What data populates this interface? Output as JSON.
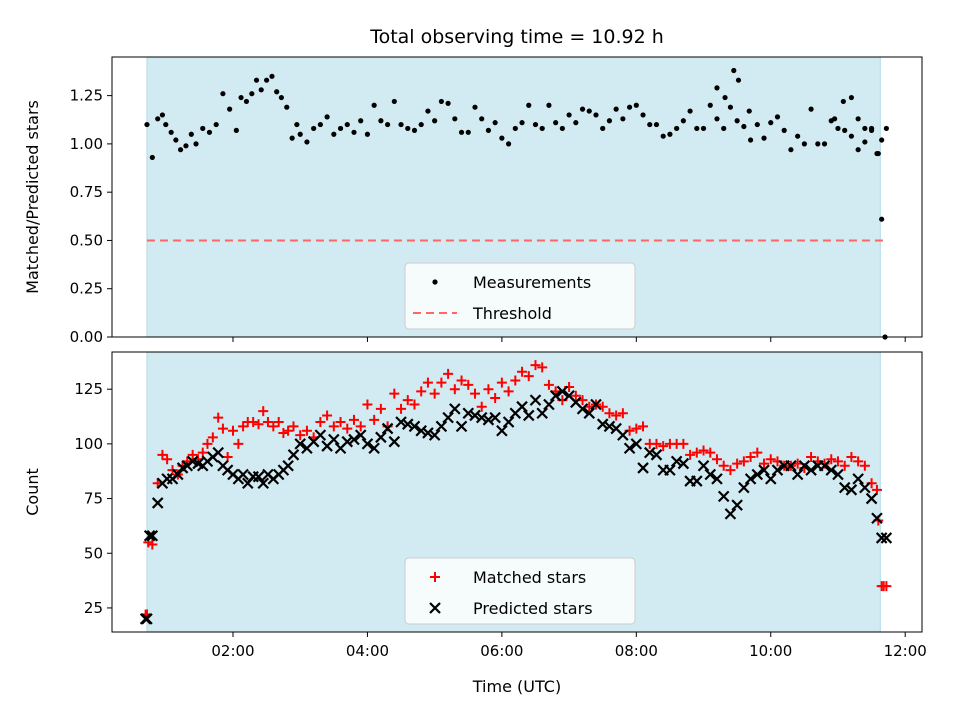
{
  "chart_data": {
    "title": "Total observing time = 10.92 h",
    "xlabel": "Time (UTC)",
    "x_unit": "hours UTC",
    "xlim": [
      0.2,
      12.25
    ],
    "x_ticks": [
      {
        "value": 2,
        "label": "02:00"
      },
      {
        "value": 4,
        "label": "04:00"
      },
      {
        "value": 6,
        "label": "06:00"
      },
      {
        "value": 8,
        "label": "08:00"
      },
      {
        "value": 10,
        "label": "10:00"
      },
      {
        "value": 12,
        "label": "12:00"
      }
    ],
    "observing_window": {
      "start": 0.72,
      "end": 11.63,
      "color": "#add8e6"
    },
    "panels": [
      {
        "id": "ratio",
        "type": "scatter",
        "ylabel": "Matched/Predicted stars",
        "ylim": [
          0,
          1.45
        ],
        "y_ticks": [
          "0.00",
          "0.25",
          "0.50",
          "0.75",
          "1.00",
          "1.25"
        ],
        "legend": {
          "position": "lower center"
        },
        "series": [
          {
            "name": "Measurements",
            "marker": "dot",
            "color": "#000000",
            "x": [
              0.72,
              0.8,
              0.88,
              0.95,
              1.0,
              1.08,
              1.15,
              1.22,
              1.3,
              1.38,
              1.45,
              1.55,
              1.65,
              1.75,
              1.85,
              1.95,
              2.05,
              2.12,
              2.2,
              2.28,
              2.35,
              2.42,
              2.5,
              2.58,
              2.65,
              2.72,
              2.8,
              2.88,
              2.95,
              3.0,
              3.1,
              3.2,
              3.3,
              3.4,
              3.5,
              3.6,
              3.7,
              3.8,
              3.9,
              4.0,
              4.1,
              4.2,
              4.3,
              4.4,
              4.5,
              4.6,
              4.7,
              4.8,
              4.9,
              5.0,
              5.1,
              5.2,
              5.3,
              5.4,
              5.5,
              5.6,
              5.7,
              5.8,
              5.9,
              6.0,
              6.1,
              6.2,
              6.3,
              6.4,
              6.5,
              6.6,
              6.7,
              6.8,
              6.9,
              7.0,
              7.1,
              7.2,
              7.3,
              7.4,
              7.5,
              7.6,
              7.7,
              7.8,
              7.9,
              8.0,
              8.1,
              8.2,
              8.3,
              8.4,
              8.5,
              8.6,
              8.7,
              8.8,
              8.9,
              9.0,
              9.1,
              9.2,
              9.3,
              9.4,
              9.5,
              9.6,
              9.7,
              9.8,
              9.9,
              10.0,
              10.1,
              10.2,
              10.3,
              10.4,
              10.5,
              10.6,
              10.7,
              10.8,
              10.9,
              11.0,
              11.1,
              11.2,
              11.3,
              11.4,
              11.5,
              11.58,
              11.65,
              11.72
            ],
            "y": [
              1.1,
              0.93,
              1.13,
              1.15,
              1.1,
              1.06,
              1.02,
              0.97,
              0.99,
              1.05,
              1.0,
              1.08,
              1.06,
              1.1,
              1.26,
              1.18,
              1.07,
              1.24,
              1.22,
              1.26,
              1.33,
              1.28,
              1.33,
              1.35,
              1.27,
              1.24,
              1.19,
              1.03,
              1.1,
              1.05,
              1.01,
              1.08,
              1.1,
              1.14,
              1.05,
              1.08,
              1.1,
              1.06,
              1.12,
              1.05,
              1.2,
              1.12,
              1.1,
              1.22,
              1.1,
              1.08,
              1.07,
              1.1,
              1.17,
              1.12,
              1.22,
              1.21,
              1.13,
              1.06,
              1.06,
              1.19,
              1.13,
              1.07,
              1.11,
              1.03,
              1.0,
              1.08,
              1.11,
              1.2,
              1.1,
              1.08,
              1.2,
              1.11,
              1.08,
              1.15,
              1.11,
              1.18,
              1.17,
              1.15,
              1.08,
              1.12,
              1.18,
              1.13,
              1.19,
              1.2,
              1.15,
              1.1,
              1.1,
              1.04,
              1.05,
              1.08,
              1.12,
              1.17,
              1.08,
              1.08,
              1.2,
              1.13,
              1.08,
              1.19,
              1.12,
              1.09,
              1.02,
              1.1,
              1.03,
              1.11,
              1.14,
              1.07,
              0.97,
              1.04,
              1.0,
              1.18,
              1.0,
              1.0,
              1.12,
              1.08,
              1.07,
              1.04,
              0.97,
              1.01,
              1.07,
              0.95,
              1.02,
              1.08
            ],
            "x_extra": [
              9.2,
              9.32,
              9.45,
              9.52,
              9.68,
              10.95,
              11.08,
              11.2,
              11.3,
              11.4,
              11.5,
              11.6,
              11.65,
              11.7
            ],
            "y_extra": [
              1.29,
              1.24,
              1.38,
              1.33,
              1.17,
              1.13,
              1.22,
              1.24,
              1.13,
              1.08,
              1.08,
              0.95,
              0.61,
              0.0
            ]
          },
          {
            "name": "Threshold",
            "marker": "dashed-line",
            "color": "#ff6666",
            "x": [
              0.72,
              11.72
            ],
            "y": [
              0.5,
              0.5
            ]
          }
        ]
      },
      {
        "id": "counts",
        "type": "scatter",
        "ylabel": "Count",
        "ylim": [
          14,
          142
        ],
        "y_ticks": [
          "25",
          "50",
          "75",
          "100",
          "125"
        ],
        "legend": {
          "position": "lower center"
        },
        "series": [
          {
            "name": "Matched stars",
            "marker": "plus",
            "color": "#ff0000",
            "x": [
              0.72,
              0.8,
              0.88,
              0.95,
              1.02,
              1.1,
              1.18,
              1.25,
              1.32,
              1.4,
              1.48,
              1.55,
              1.62,
              1.7,
              1.78,
              1.85,
              1.92,
              2.0,
              2.08,
              2.15,
              2.22,
              2.3,
              2.38,
              2.45,
              2.52,
              2.6,
              2.68,
              2.75,
              2.82,
              2.9,
              3.0,
              3.1,
              3.2,
              3.3,
              3.4,
              3.5,
              3.6,
              3.7,
              3.8,
              3.9,
              4.0,
              4.1,
              4.2,
              4.3,
              4.4,
              4.5,
              4.6,
              4.7,
              4.8,
              4.9,
              5.0,
              5.1,
              5.2,
              5.3,
              5.4,
              5.5,
              5.6,
              5.7,
              5.8,
              5.9,
              6.0,
              6.1,
              6.2,
              6.3,
              6.4,
              6.5,
              6.6,
              6.7,
              6.8,
              6.9,
              7.0,
              7.1,
              7.2,
              7.3,
              7.4,
              7.5,
              7.6,
              7.7,
              7.8,
              7.9,
              8.0,
              8.1,
              8.2,
              8.3,
              8.4,
              8.5,
              8.6,
              8.7,
              8.8,
              8.9,
              9.0,
              9.1,
              9.2,
              9.3,
              9.4,
              9.5,
              9.6,
              9.7,
              9.8,
              9.9,
              10.0,
              10.1,
              10.2,
              10.3,
              10.4,
              10.5,
              10.6,
              10.7,
              10.8,
              10.9,
              11.0,
              11.1,
              11.2,
              11.3,
              11.4,
              11.5,
              11.58,
              11.65,
              11.72
            ],
            "y": [
              22,
              54,
              82,
              95,
              93,
              88,
              86,
              90,
              92,
              95,
              93,
              96,
              100,
              103,
              112,
              107,
              94,
              106,
              100,
              108,
              110,
              110,
              109,
              115,
              110,
              108,
              110,
              105,
              106,
              108,
              104,
              106,
              103,
              110,
              113,
              108,
              110,
              107,
              111,
              108,
              118,
              111,
              116,
              108,
              123,
              116,
              120,
              118,
              124,
              128,
              123,
              128,
              132,
              125,
              129,
              127,
              123,
              117,
              125,
              121,
              128,
              124,
              129,
              133,
              131,
              136,
              135,
              127,
              124,
              120,
              126,
              122,
              120,
              117,
              118,
              117,
              114,
              113,
              114,
              106,
              107,
              108,
              100,
              100,
              99,
              100,
              100,
              100,
              95,
              96,
              97,
              96,
              93,
              90,
              88,
              91,
              92,
              94,
              96,
              91,
              93,
              92,
              90,
              90,
              91,
              89,
              94,
              92,
              91,
              93,
              92,
              90,
              94,
              92,
              90,
              82,
              79,
              35,
              35
            ],
            "x_extra": [
              0.7,
              0.74,
              11.6,
              11.68
            ],
            "y_extra": [
              22,
              55,
              65,
              35
            ]
          },
          {
            "name": "Predicted stars",
            "marker": "x",
            "color": "#000000",
            "x": [
              0.72,
              0.8,
              0.88,
              0.95,
              1.02,
              1.1,
              1.18,
              1.25,
              1.32,
              1.4,
              1.48,
              1.55,
              1.62,
              1.7,
              1.78,
              1.85,
              1.92,
              2.0,
              2.08,
              2.15,
              2.22,
              2.3,
              2.38,
              2.45,
              2.52,
              2.6,
              2.68,
              2.75,
              2.82,
              2.9,
              3.0,
              3.1,
              3.2,
              3.3,
              3.4,
              3.5,
              3.6,
              3.7,
              3.8,
              3.9,
              4.0,
              4.1,
              4.2,
              4.3,
              4.4,
              4.5,
              4.6,
              4.7,
              4.8,
              4.9,
              5.0,
              5.1,
              5.2,
              5.3,
              5.4,
              5.5,
              5.6,
              5.7,
              5.8,
              5.9,
              6.0,
              6.1,
              6.2,
              6.3,
              6.4,
              6.5,
              6.6,
              6.7,
              6.8,
              6.9,
              7.0,
              7.1,
              7.2,
              7.3,
              7.4,
              7.5,
              7.6,
              7.7,
              7.8,
              7.9,
              8.0,
              8.1,
              8.2,
              8.3,
              8.4,
              8.5,
              8.6,
              8.7,
              8.8,
              8.9,
              9.0,
              9.1,
              9.2,
              9.3,
              9.4,
              9.5,
              9.6,
              9.7,
              9.8,
              9.9,
              10.0,
              10.1,
              10.2,
              10.3,
              10.4,
              10.5,
              10.6,
              10.7,
              10.8,
              10.9,
              11.0,
              11.1,
              11.2,
              11.3,
              11.4,
              11.5,
              11.58,
              11.65,
              11.72
            ],
            "y": [
              20,
              58,
              73,
              82,
              84,
              84,
              86,
              89,
              90,
              92,
              91,
              90,
              92,
              94,
              96,
              90,
              88,
              86,
              84,
              86,
              82,
              85,
              85,
              82,
              86,
              84,
              86,
              88,
              90,
              95,
              100,
              98,
              101,
              104,
              99,
              102,
              98,
              101,
              102,
              104,
              100,
              98,
              103,
              107,
              101,
              110,
              109,
              108,
              106,
              105,
              104,
              108,
              112,
              116,
              108,
              114,
              113,
              112,
              111,
              112,
              106,
              110,
              114,
              117,
              113,
              120,
              114,
              118,
              122,
              124,
              122,
              119,
              116,
              114,
              118,
              109,
              108,
              107,
              104,
              98,
              100,
              89,
              96,
              95,
              88,
              88,
              92,
              91,
              83,
              83,
              90,
              86,
              84,
              76,
              68,
              72,
              80,
              84,
              86,
              88,
              84,
              88,
              90,
              90,
              86,
              90,
              88,
              90,
              90,
              88,
              86,
              80,
              79,
              84,
              80,
              75,
              66,
              57,
              57
            ],
            "x_extra": [
              0.7,
              0.76
            ],
            "y_extra": [
              20,
              58
            ]
          }
        ]
      }
    ]
  }
}
